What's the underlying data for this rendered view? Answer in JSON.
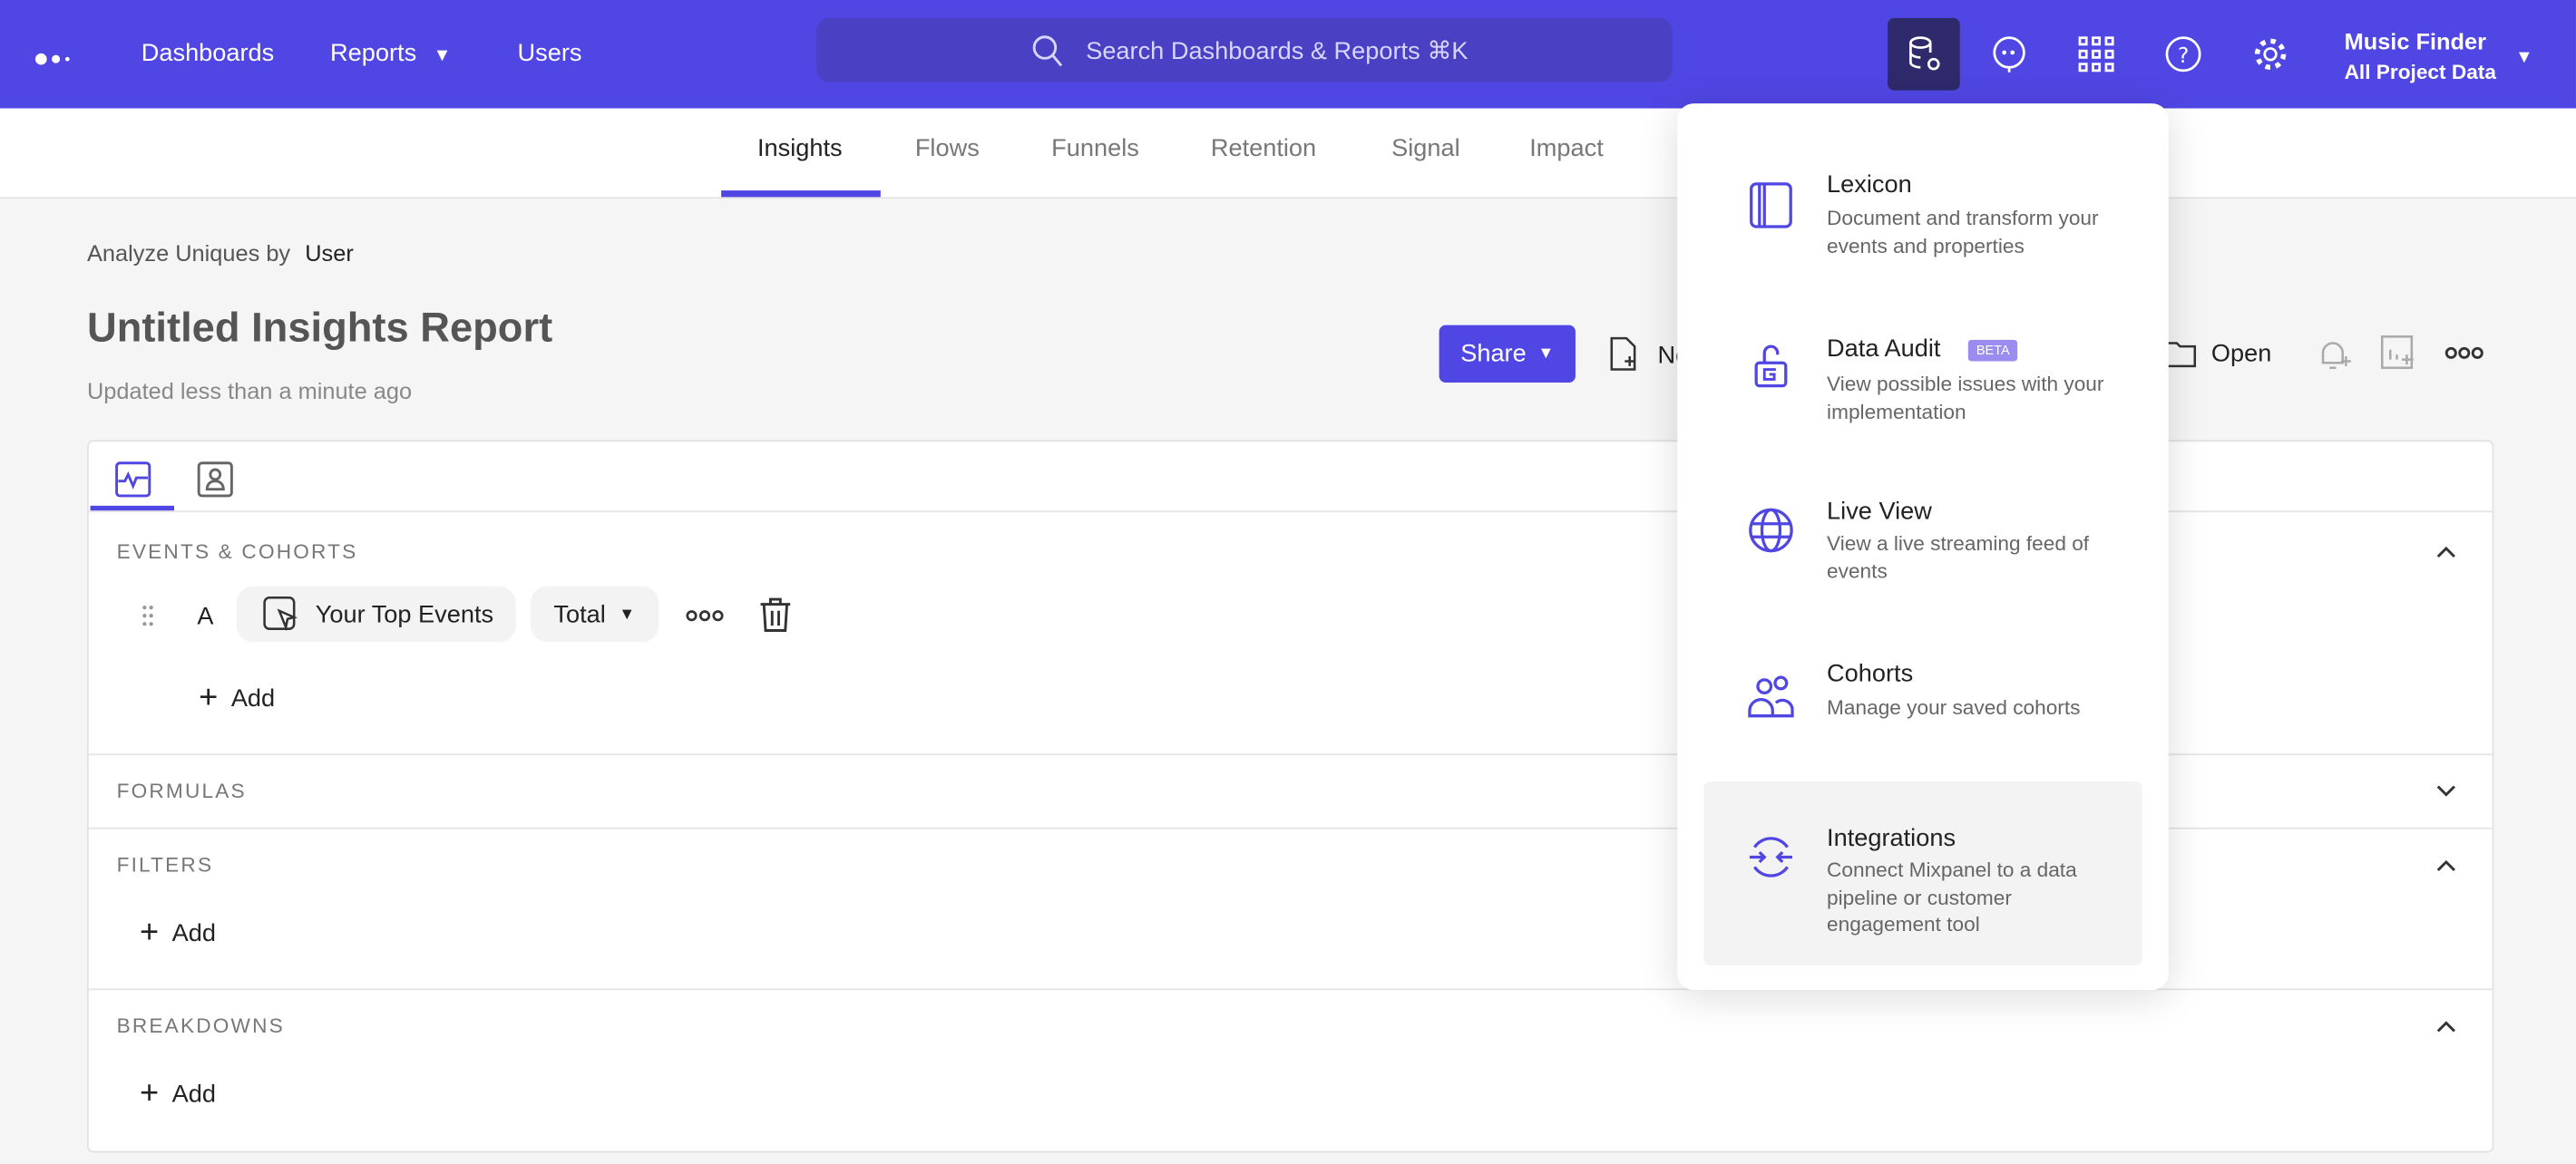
{
  "topbar": {
    "nav": [
      "Dashboards",
      "Reports",
      "Users"
    ],
    "search_placeholder": "Search Dashboards & Reports ⌘K",
    "project_name": "Music Finder",
    "project_scope": "All Project Data",
    "brand_color": "#5046e4"
  },
  "subnav": {
    "tabs": [
      "Insights",
      "Flows",
      "Funnels",
      "Retention",
      "Signal",
      "Impact"
    ],
    "active": "Insights"
  },
  "report": {
    "analyze_label": "Analyze Uniques by",
    "analyze_value": "User",
    "title": "Untitled Insights Report",
    "updated": "Updated less than a minute ago",
    "share": "Share",
    "new": "New",
    "open": "Open"
  },
  "builder": {
    "events_header": "EVENTS & COHORTS",
    "row_letter": "A",
    "event": "Your Top Events",
    "measure": "Total",
    "add": "Add",
    "formulas_header": "FORMULAS",
    "filters_header": "FILTERS",
    "breakdowns_header": "BREAKDOWNS"
  },
  "menu": {
    "items": [
      {
        "title": "Lexicon",
        "desc": "Document and transform your events and properties",
        "icon": "book-icon"
      },
      {
        "title": "Data Audit",
        "badge": "BETA",
        "desc": "View possible issues with your implementation",
        "icon": "lock-icon"
      },
      {
        "title": "Live View",
        "desc": "View a live streaming feed of events",
        "icon": "globe-icon"
      },
      {
        "title": "Cohorts",
        "desc": "Manage your saved cohorts",
        "icon": "users-icon"
      },
      {
        "title": "Integrations",
        "desc": "Connect Mixpanel to a data pipeline or customer engagement tool",
        "icon": "arrows-icon"
      }
    ]
  }
}
